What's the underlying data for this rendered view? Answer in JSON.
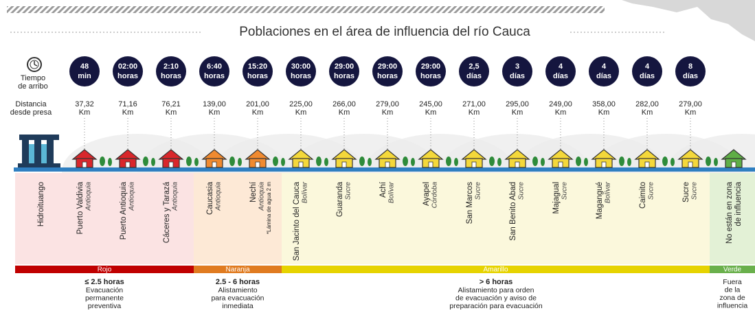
{
  "header": {
    "title": "Poblaciones en el área de influencia del río Cauca"
  },
  "labels": {
    "arrival_time": [
      "Tiempo",
      "de arribo"
    ],
    "distance": [
      "Distancia",
      "desde presa"
    ]
  },
  "stations": [
    {
      "time": "48",
      "time_unit": "min",
      "distance": "37,32",
      "distance_unit": "Km"
    },
    {
      "time": "02:00",
      "time_unit": "horas",
      "distance": "71,16",
      "distance_unit": "Km"
    },
    {
      "time": "2:10",
      "time_unit": "horas",
      "distance": "76,21",
      "distance_unit": "Km"
    },
    {
      "time": "6:40",
      "time_unit": "horas",
      "distance": "139,00",
      "distance_unit": "Km"
    },
    {
      "time": "15:20",
      "time_unit": "horas",
      "distance": "201,00",
      "distance_unit": "Km"
    },
    {
      "time": "30:00",
      "time_unit": "horas",
      "distance": "225,00",
      "distance_unit": "Km"
    },
    {
      "time": "29:00",
      "time_unit": "horas",
      "distance": "266,00",
      "distance_unit": "Km"
    },
    {
      "time": "29:00",
      "time_unit": "horas",
      "distance": "279,00",
      "distance_unit": "Km"
    },
    {
      "time": "29:00",
      "time_unit": "horas",
      "distance": "245,00",
      "distance_unit": "Km"
    },
    {
      "time": "2,5",
      "time_unit": "días",
      "distance": "271,00",
      "distance_unit": "Km"
    },
    {
      "time": "3",
      "time_unit": "días",
      "distance": "295,00",
      "distance_unit": "Km"
    },
    {
      "time": "4",
      "time_unit": "días",
      "distance": "249,00",
      "distance_unit": "Km"
    },
    {
      "time": "4",
      "time_unit": "días",
      "distance": "358,00",
      "distance_unit": "Km"
    },
    {
      "time": "4",
      "time_unit": "días",
      "distance": "282,00",
      "distance_unit": "Km"
    },
    {
      "time": "8",
      "time_unit": "días",
      "distance": "279,00",
      "distance_unit": "Km"
    }
  ],
  "places": [
    {
      "name": "Hidroituango"
    },
    {
      "name": "Puerto Valdivia",
      "dept": "Antioquia"
    },
    {
      "name": "Puerto Antioquia",
      "dept": "Antioquia"
    },
    {
      "name": "Cáceres y Tarazá",
      "dept": "Antioquia"
    },
    {
      "name": "Caucasia",
      "dept": "Antioquia"
    },
    {
      "name": "Nechí",
      "dept": "Antioquia",
      "note": "*Lámina de agua 2 m"
    },
    {
      "name": "San Jacinto del Cauca",
      "dept": "Bolívar"
    },
    {
      "name": "Guaranda",
      "dept": "Sucre"
    },
    {
      "name": "Achí",
      "dept": "Bolívar"
    },
    {
      "name": "Ayapel",
      "dept": "Córdoba"
    },
    {
      "name": "San Marcos",
      "dept": "Sucre"
    },
    {
      "name": "San Benito Abad",
      "dept": "Sucre"
    },
    {
      "name": "Majagual",
      "dept": "Sucre"
    },
    {
      "name": "Magangué",
      "dept": "Bolívar"
    },
    {
      "name": "Caimito",
      "dept": "Sucre"
    },
    {
      "name": "Sucre",
      "dept": "Sucre"
    },
    {
      "name": [
        "No están en zona",
        "de influencia"
      ]
    }
  ],
  "zones": [
    {
      "label": "Rojo",
      "heading": "≤ 2.5 horas",
      "description": [
        "Evacuación",
        "permanente",
        "preventiva"
      ]
    },
    {
      "label": "Naranja",
      "heading": "2.5 - 6 horas",
      "description": [
        "Alistamiento",
        "para evacuación",
        "inmediata"
      ]
    },
    {
      "label": "Amarillo",
      "heading": "> 6 horas",
      "description": [
        "Alistamiento para orden",
        "de evacuación y aviso de",
        "preparación  para evacuación"
      ]
    },
    {
      "label": "Verde",
      "description": [
        "Fuera",
        "de la",
        "zona de",
        "influencia"
      ]
    }
  ]
}
